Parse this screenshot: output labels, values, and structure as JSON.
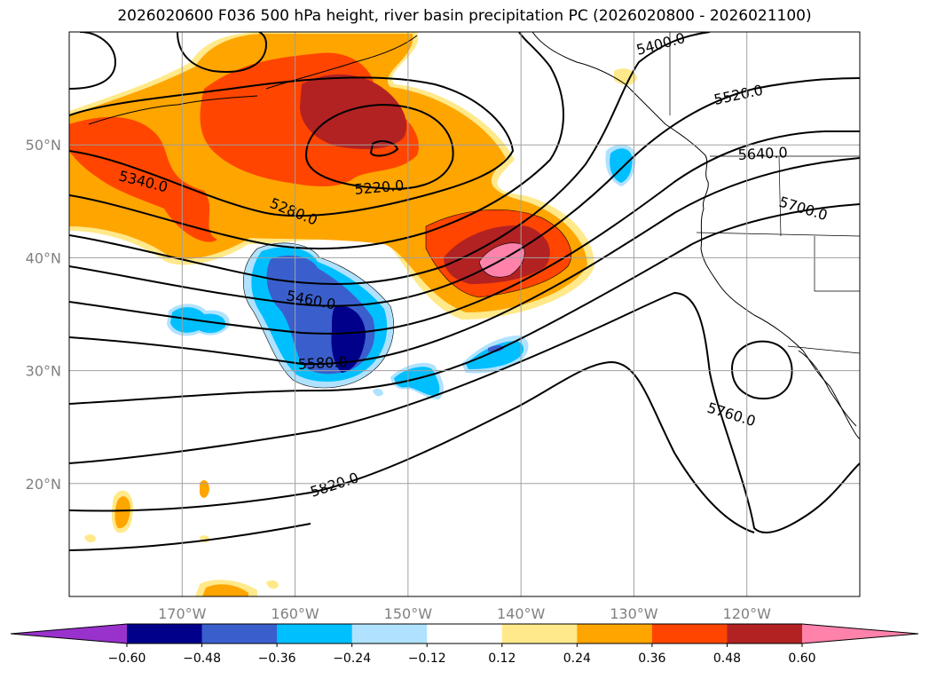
{
  "title": "2026020600 F036 500 hPa height, river basin precipitation PC (2026020800 - 2026021100)",
  "map": {
    "lon_range": [
      -180,
      -110
    ],
    "lat_range": [
      10,
      60
    ],
    "lat_ticks": [
      {
        "value": 20,
        "label": "20°N"
      },
      {
        "value": 30,
        "label": "30°N"
      },
      {
        "value": 40,
        "label": "40°N"
      },
      {
        "value": 50,
        "label": "50°N"
      }
    ],
    "lon_ticks": [
      {
        "value": -170,
        "label": "170°W"
      },
      {
        "value": -160,
        "label": "160°W"
      },
      {
        "value": -150,
        "label": "150°W"
      },
      {
        "value": -140,
        "label": "140°W"
      },
      {
        "value": -130,
        "label": "130°W"
      },
      {
        "value": -120,
        "label": "120°W"
      }
    ],
    "height_contour_labels": [
      "5220.0",
      "5280.0",
      "5340.0",
      "5400.0",
      "5460.0",
      "5520.0",
      "5580.0",
      "5640.0",
      "5700.0",
      "5760.0",
      "5820.0"
    ]
  },
  "colorbar": {
    "tick_labels": [
      "−0.60",
      "−0.48",
      "−0.36",
      "−0.24",
      "−0.12",
      "0.12",
      "0.24",
      "0.36",
      "0.48",
      "0.60"
    ],
    "colors": [
      "#9932cc",
      "#00008b",
      "#3a5fcd",
      "#00bfff",
      "#b0e2ff",
      "#ffffff",
      "#ffe98a",
      "#ffa500",
      "#ff4500",
      "#b22222",
      "#ff82ab"
    ]
  }
}
